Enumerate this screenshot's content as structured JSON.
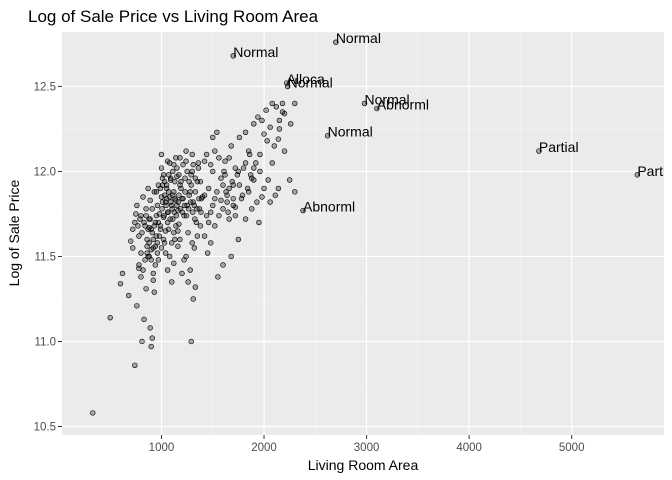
{
  "chart_data": {
    "type": "scatter",
    "title": "Log of Sale Price vs Living Room Area",
    "xlabel": "Living Room Area",
    "ylabel": "Log of Sale Price",
    "xlim": [
      30,
      5900
    ],
    "ylim": [
      10.45,
      12.82
    ],
    "x_ticks": [
      1000,
      2000,
      3000,
      4000,
      5000
    ],
    "y_ticks": [
      10.5,
      11.0,
      11.5,
      12.0,
      12.5
    ],
    "x_tick_labels": [
      "1000",
      "2000",
      "3000",
      "4000",
      "5000"
    ],
    "y_tick_labels": [
      "10.5",
      "11.0",
      "11.5",
      "12.0",
      "12.5"
    ],
    "grid": true,
    "point_color": "#000000",
    "point_fill": "rgba(0,0,0,0.3)",
    "panel_background": "#ebebeb",
    "annotations": [
      {
        "label": "Normal",
        "x": 1700,
        "y": 12.68
      },
      {
        "label": "Normal",
        "x": 2700,
        "y": 12.76
      },
      {
        "label": "Alloca",
        "x": 2220,
        "y": 12.52
      },
      {
        "label": "Normal",
        "x": 2230,
        "y": 12.5
      },
      {
        "label": "Normal",
        "x": 2980,
        "y": 12.4
      },
      {
        "label": "Abnorml",
        "x": 3100,
        "y": 12.37
      },
      {
        "label": "Normal",
        "x": 2620,
        "y": 12.21
      },
      {
        "label": "Partial",
        "x": 4680,
        "y": 12.12
      },
      {
        "label": "Partial",
        "x": 5640,
        "y": 11.98
      },
      {
        "label": "Abnorml",
        "x": 2380,
        "y": 11.77
      }
    ],
    "points": [
      [
        330,
        10.58
      ],
      [
        500,
        11.14
      ],
      [
        600,
        11.34
      ],
      [
        620,
        11.4
      ],
      [
        680,
        11.27
      ],
      [
        720,
        11.55
      ],
      [
        740,
        10.86
      ],
      [
        760,
        11.21
      ],
      [
        780,
        11.43
      ],
      [
        800,
        11.52
      ],
      [
        810,
        11.0
      ],
      [
        830,
        11.13
      ],
      [
        850,
        11.31
      ],
      [
        870,
        11.5
      ],
      [
        880,
        11.67
      ],
      [
        890,
        11.08
      ],
      [
        900,
        10.97
      ],
      [
        910,
        11.02
      ],
      [
        920,
        11.36
      ],
      [
        930,
        11.29
      ],
      [
        700,
        11.59
      ],
      [
        740,
        11.7
      ],
      [
        760,
        11.8
      ],
      [
        780,
        11.62
      ],
      [
        800,
        11.74
      ],
      [
        820,
        11.85
      ],
      [
        840,
        11.68
      ],
      [
        850,
        11.78
      ],
      [
        860,
        11.6
      ],
      [
        870,
        11.9
      ],
      [
        880,
        11.72
      ],
      [
        890,
        11.83
      ],
      [
        900,
        11.66
      ],
      [
        910,
        11.78
      ],
      [
        920,
        11.55
      ],
      [
        930,
        11.88
      ],
      [
        940,
        11.7
      ],
      [
        950,
        11.62
      ],
      [
        960,
        11.8
      ],
      [
        970,
        11.48
      ],
      [
        980,
        11.75
      ],
      [
        990,
        11.68
      ],
      [
        1000,
        11.85
      ],
      [
        1010,
        11.92
      ],
      [
        1020,
        11.73
      ],
      [
        1030,
        11.58
      ],
      [
        1040,
        11.82
      ],
      [
        1050,
        11.9
      ],
      [
        1060,
        11.76
      ],
      [
        1070,
        11.66
      ],
      [
        1080,
        11.85
      ],
      [
        1090,
        11.95
      ],
      [
        1100,
        11.8
      ],
      [
        1110,
        11.72
      ],
      [
        1120,
        11.88
      ],
      [
        1130,
        11.6
      ],
      [
        1140,
        11.83
      ],
      [
        1150,
        11.97
      ],
      [
        1160,
        11.77
      ],
      [
        1170,
        11.69
      ],
      [
        1000,
        12.1
      ],
      [
        1020,
        11.98
      ],
      [
        1040,
        11.52
      ],
      [
        1060,
        11.42
      ],
      [
        1080,
        12.05
      ],
      [
        1100,
        11.35
      ],
      [
        1120,
        11.46
      ],
      [
        1140,
        12.08
      ],
      [
        1160,
        11.56
      ],
      [
        1180,
        11.92
      ],
      [
        1200,
        11.84
      ],
      [
        1220,
        11.74
      ],
      [
        1240,
        12.12
      ],
      [
        1260,
        11.64
      ],
      [
        1280,
        11.88
      ],
      [
        1300,
        12.0
      ],
      [
        1320,
        11.8
      ],
      [
        1340,
        11.7
      ],
      [
        1360,
        12.05
      ],
      [
        1380,
        11.94
      ],
      [
        1400,
        11.85
      ],
      [
        1420,
        11.62
      ],
      [
        1440,
        12.1
      ],
      [
        1460,
        11.9
      ],
      [
        1480,
        11.76
      ],
      [
        1500,
        12.0
      ],
      [
        1520,
        11.68
      ],
      [
        1540,
        11.88
      ],
      [
        1560,
        12.08
      ],
      [
        1580,
        11.96
      ],
      [
        1600,
        11.78
      ],
      [
        1620,
        12.06
      ],
      [
        1640,
        11.86
      ],
      [
        1660,
        11.72
      ],
      [
        1680,
        12.15
      ],
      [
        1700,
        11.92
      ],
      [
        1720,
        11.79
      ],
      [
        1740,
        11.98
      ],
      [
        1760,
        12.2
      ],
      [
        1780,
        11.84
      ],
      [
        1800,
        12.02
      ],
      [
        1820,
        12.23
      ],
      [
        1840,
        11.9
      ],
      [
        1860,
        12.1
      ],
      [
        1880,
        11.96
      ],
      [
        1900,
        12.28
      ],
      [
        1920,
        12.05
      ],
      [
        1940,
        12.32
      ],
      [
        1960,
        12.0
      ],
      [
        1980,
        12.3
      ],
      [
        2000,
        12.22
      ],
      [
        2020,
        12.36
      ],
      [
        2040,
        11.95
      ],
      [
        2060,
        12.26
      ],
      [
        2080,
        12.4
      ],
      [
        2100,
        12.15
      ],
      [
        2120,
        12.38
      ],
      [
        2150,
        12.3
      ],
      [
        2180,
        12.4
      ],
      [
        2200,
        12.12
      ],
      [
        2250,
        11.95
      ],
      [
        2300,
        11.88
      ],
      [
        2180,
        12.35
      ],
      [
        2140,
        12.19
      ],
      [
        2060,
        11.82
      ],
      [
        2110,
        11.86
      ],
      [
        2140,
        11.9
      ],
      [
        1980,
        11.85
      ],
      [
        1900,
        12.02
      ],
      [
        1850,
        11.88
      ],
      [
        1750,
        12.0
      ],
      [
        1700,
        11.8
      ],
      [
        1650,
        11.76
      ],
      [
        1620,
        11.98
      ],
      [
        1580,
        11.83
      ],
      [
        1540,
        12.23
      ],
      [
        1500,
        12.2
      ],
      [
        1480,
        11.58
      ],
      [
        1450,
        11.52
      ],
      [
        1420,
        11.86
      ],
      [
        1380,
        11.68
      ],
      [
        1350,
        11.62
      ],
      [
        1320,
        11.55
      ],
      [
        1300,
        11.58
      ],
      [
        1280,
        11.42
      ],
      [
        1260,
        11.35
      ],
      [
        1240,
        11.5
      ],
      [
        1220,
        11.48
      ],
      [
        1200,
        11.4
      ],
      [
        1180,
        11.6
      ],
      [
        1160,
        11.65
      ],
      [
        1140,
        11.68
      ],
      [
        1120,
        11.64
      ],
      [
        1100,
        11.58
      ],
      [
        1080,
        11.5
      ],
      [
        1060,
        11.7
      ],
      [
        1040,
        11.65
      ],
      [
        1020,
        11.6
      ],
      [
        1000,
        11.55
      ],
      [
        980,
        11.62
      ],
      [
        960,
        11.52
      ],
      [
        940,
        11.45
      ],
      [
        920,
        11.4
      ],
      [
        900,
        11.48
      ],
      [
        880,
        11.5
      ],
      [
        860,
        11.52
      ],
      [
        840,
        11.48
      ],
      [
        820,
        11.42
      ],
      [
        800,
        11.38
      ],
      [
        780,
        11.45
      ],
      [
        1290,
        11.0
      ],
      [
        1310,
        11.25
      ],
      [
        1330,
        11.32
      ],
      [
        1550,
        11.38
      ],
      [
        1600,
        11.45
      ],
      [
        1680,
        11.5
      ],
      [
        1750,
        11.6
      ],
      [
        1820,
        11.72
      ],
      [
        1880,
        11.78
      ],
      [
        1950,
        11.7
      ],
      [
        1010,
        11.82
      ],
      [
        1030,
        11.86
      ],
      [
        1050,
        11.84
      ],
      [
        1070,
        11.88
      ],
      [
        1090,
        11.82
      ],
      [
        1110,
        11.86
      ],
      [
        1130,
        11.84
      ],
      [
        1150,
        11.8
      ],
      [
        1170,
        11.86
      ],
      [
        1190,
        11.9
      ],
      [
        1210,
        11.84
      ],
      [
        1230,
        11.88
      ],
      [
        1250,
        11.8
      ],
      [
        1270,
        11.86
      ],
      [
        1290,
        11.92
      ],
      [
        1310,
        11.82
      ],
      [
        1330,
        11.88
      ],
      [
        1350,
        11.94
      ],
      [
        1370,
        11.78
      ],
      [
        1390,
        11.84
      ],
      [
        1005,
        11.78
      ],
      [
        1025,
        11.74
      ],
      [
        1045,
        11.8
      ],
      [
        1065,
        11.76
      ],
      [
        1085,
        11.72
      ],
      [
        1105,
        11.78
      ],
      [
        1125,
        11.76
      ],
      [
        1145,
        11.74
      ],
      [
        1165,
        11.82
      ],
      [
        1185,
        11.78
      ],
      [
        1205,
        11.76
      ],
      [
        1225,
        11.8
      ],
      [
        1245,
        11.74
      ],
      [
        1265,
        11.78
      ],
      [
        1285,
        11.82
      ],
      [
        1305,
        11.76
      ],
      [
        1325,
        11.72
      ],
      [
        1345,
        11.78
      ],
      [
        1365,
        11.84
      ],
      [
        1385,
        11.76
      ],
      [
        950,
        11.88
      ],
      [
        970,
        11.92
      ],
      [
        990,
        11.9
      ],
      [
        1010,
        11.96
      ],
      [
        1030,
        11.94
      ],
      [
        1050,
        11.92
      ],
      [
        1070,
        11.98
      ],
      [
        1090,
        11.96
      ],
      [
        1110,
        12.0
      ],
      [
        1130,
        11.94
      ],
      [
        1150,
        12.02
      ],
      [
        1170,
        11.98
      ],
      [
        1190,
        11.94
      ],
      [
        1210,
        12.04
      ],
      [
        1230,
        11.96
      ],
      [
        1250,
        12.0
      ],
      [
        1270,
        11.94
      ],
      [
        1290,
        11.98
      ],
      [
        1310,
        12.04
      ],
      [
        1330,
        11.96
      ],
      [
        1000,
        12.02
      ],
      [
        1060,
        12.06
      ],
      [
        1120,
        12.04
      ],
      [
        1180,
        12.08
      ],
      [
        1240,
        12.06
      ],
      [
        1300,
        12.1
      ],
      [
        1360,
        12.02
      ],
      [
        1420,
        12.06
      ],
      [
        1480,
        12.04
      ],
      [
        1520,
        12.12
      ],
      [
        1440,
        11.74
      ],
      [
        1460,
        11.7
      ],
      [
        1500,
        11.8
      ],
      [
        1520,
        11.84
      ],
      [
        1560,
        11.74
      ],
      [
        1600,
        11.92
      ],
      [
        1640,
        11.82
      ],
      [
        1660,
        11.9
      ],
      [
        1700,
        11.84
      ],
      [
        1720,
        11.74
      ],
      [
        720,
        11.66
      ],
      [
        750,
        11.75
      ],
      [
        770,
        11.68
      ],
      [
        790,
        11.72
      ],
      [
        810,
        11.64
      ],
      [
        830,
        11.7
      ],
      [
        850,
        11.74
      ],
      [
        870,
        11.66
      ],
      [
        890,
        11.72
      ],
      [
        910,
        11.64
      ],
      [
        930,
        11.68
      ],
      [
        950,
        11.74
      ],
      [
        970,
        11.7
      ],
      [
        990,
        11.66
      ],
      [
        860,
        11.56
      ],
      [
        880,
        11.58
      ],
      [
        900,
        11.54
      ],
      [
        920,
        11.6
      ],
      [
        940,
        11.56
      ],
      [
        960,
        11.58
      ],
      [
        1900,
        11.95
      ],
      [
        1930,
        11.82
      ],
      [
        1960,
        12.1
      ],
      [
        2000,
        11.9
      ],
      [
        2030,
        12.18
      ],
      [
        2080,
        12.05
      ],
      [
        2150,
        12.25
      ],
      [
        2200,
        12.34
      ],
      [
        2260,
        12.28
      ],
      [
        2300,
        12.4
      ],
      [
        1760,
        11.92
      ],
      [
        1790,
        11.86
      ],
      [
        1820,
        12.05
      ],
      [
        1850,
        12.12
      ],
      [
        1870,
        11.98
      ],
      [
        1720,
        12.02
      ],
      [
        1690,
        11.94
      ],
      [
        1660,
        12.08
      ],
      [
        1630,
        11.88
      ],
      [
        1610,
        12.0
      ]
    ]
  }
}
